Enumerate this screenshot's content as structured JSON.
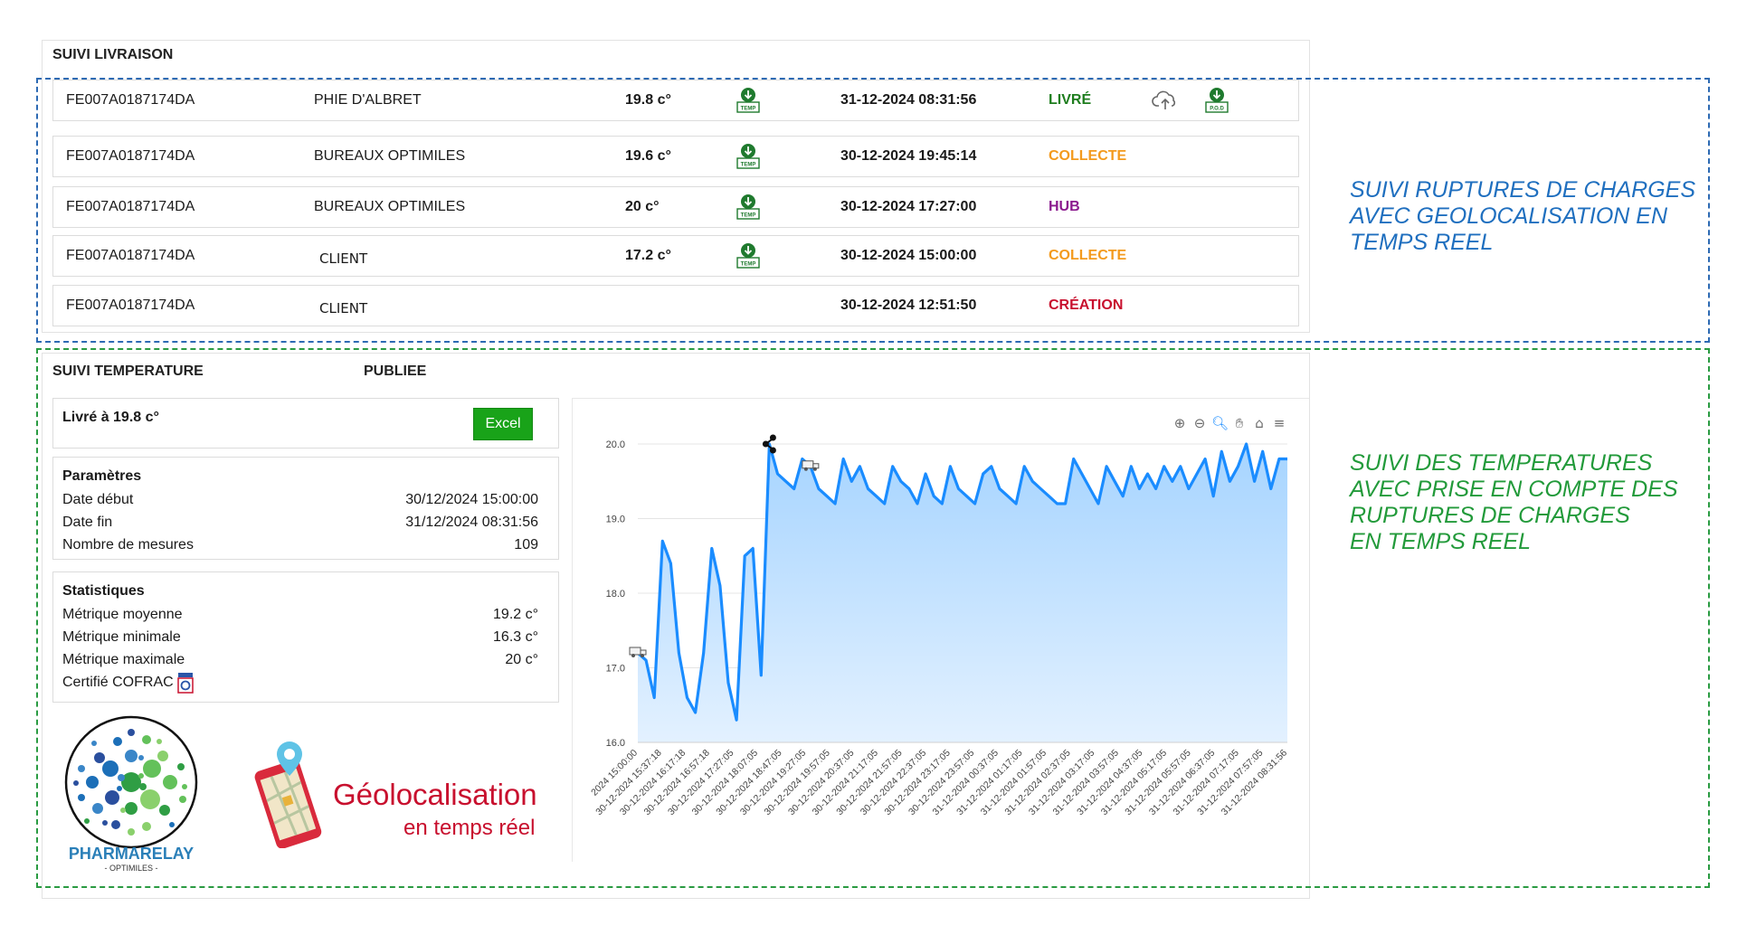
{
  "delivery": {
    "title": "SUIVI LIVRAISON",
    "rows": [
      {
        "id": "FE007A0187174DA",
        "place": "PHIE D'ALBRET",
        "temp": "19.8 c°",
        "has_temp_icon": true,
        "date": "31-12-2024 08:31:56",
        "status": "LIVRÉ",
        "status_color": "#1e7d1e",
        "has_cloud": true,
        "has_pod": true
      },
      {
        "id": "FE007A0187174DA",
        "place": "BUREAUX OPTIMILES",
        "temp": "19.6 c°",
        "has_temp_icon": true,
        "date": "30-12-2024 19:45:14",
        "status": "COLLECTE",
        "status_color": "#f39a1d",
        "has_cloud": false,
        "has_pod": false
      },
      {
        "id": "FE007A0187174DA",
        "place": "BUREAUX OPTIMILES",
        "temp": "20 c°",
        "has_temp_icon": true,
        "date": "30-12-2024 17:27:00",
        "status": "HUB",
        "status_color": "#8b1a8e",
        "has_cloud": false,
        "has_pod": false
      },
      {
        "id": "FE007A0187174DA",
        "place": "CLIENT",
        "temp": "17.2 c°",
        "has_temp_icon": true,
        "date": "30-12-2024 15:00:00",
        "status": "COLLECTE",
        "status_color": "#f39a1d",
        "has_cloud": false,
        "has_pod": false
      },
      {
        "id": "FE007A0187174DA",
        "place": "CLIENT",
        "temp": "",
        "has_temp_icon": false,
        "date": "30-12-2024 12:51:50",
        "status": "CRÉATION",
        "status_color": "#c8102e",
        "has_cloud": false,
        "has_pod": false
      }
    ],
    "temp_icon_label": "TEMP",
    "pod_icon_label": "P.O.D"
  },
  "temperature": {
    "title": "SUIVI TEMPERATURE",
    "publish_label": "PUBLIEE",
    "delivered_label": "Livré à 19.8 c°",
    "excel_button": "Excel",
    "params_title": "Paramètres",
    "params": [
      {
        "label": "Date début",
        "value": "30/12/2024 15:00:00"
      },
      {
        "label": "Date fin",
        "value": "31/12/2024 08:31:56"
      },
      {
        "label": "Nombre de mesures",
        "value": "109"
      }
    ],
    "stats_title": "Statistiques",
    "stats": [
      {
        "label": "Métrique moyenne",
        "value": "19.2 c°"
      },
      {
        "label": "Métrique minimale",
        "value": "16.3 c°"
      },
      {
        "label": "Métrique maximale",
        "value": "20 c°"
      }
    ],
    "cofrac_label": "Certifié COFRAC"
  },
  "branding": {
    "logo_name": "PHARMARELAY",
    "logo_sub": "- OPTIMILES -",
    "geo_title": "Géolocalisation",
    "geo_sub": "en temps réel",
    "geo_color": "#c8102e"
  },
  "annotations": {
    "blue_lines": [
      "SUIVI RUPTURES DE CHARGES",
      "AVEC GEOLOCALISATION EN",
      "TEMPS REEL"
    ],
    "blue_color": "#1f6fbf",
    "green_lines": [
      "SUIVI DES TEMPERATURES",
      "AVEC PRISE EN COMPTE DES",
      "RUPTURES DE CHARGES",
      "EN TEMPS REEL"
    ],
    "green_color": "#229a3a"
  },
  "chart_toolbar": [
    "zoom-in-icon",
    "zoom-out-icon",
    "selection-zoom-icon",
    "pan-icon",
    "reset-home-icon",
    "menu-icon"
  ],
  "chart_data": {
    "type": "area",
    "title": "",
    "xlabel": "",
    "ylabel": "",
    "ylim": [
      16.0,
      20.0
    ],
    "yticks": [
      "16.0",
      "17.0",
      "18.0",
      "19.0",
      "20.0"
    ],
    "grid": true,
    "color": "#1a8cff",
    "fill_color": "#a6d4ff",
    "x_tick_labels": [
      "2024 15:00:00",
      "30-12-2024 15:37:18",
      "30-12-2024 16:17:18",
      "30-12-2024 16:57:18",
      "30-12-2024 17:27:05",
      "30-12-2024 18:07:05",
      "30-12-2024 18:47:05",
      "30-12-2024 19:27:05",
      "30-12-2024 19:57:05",
      "30-12-2024 20:37:05",
      "30-12-2024 21:17:05",
      "30-12-2024 21:57:05",
      "30-12-2024 22:37:05",
      "30-12-2024 23:17:05",
      "30-12-2024 23:57:05",
      "31-12-2024 00:37:05",
      "31-12-2024 01:17:05",
      "31-12-2024 01:57:05",
      "31-12-2024 02:37:05",
      "31-12-2024 03:17:05",
      "31-12-2024 03:57:05",
      "31-12-2024 04:37:05",
      "31-12-2024 05:17:05",
      "31-12-2024 05:57:05",
      "31-12-2024 06:37:05",
      "31-12-2024 07:17:05",
      "31-12-2024 07:57:05",
      "31-12-2024 08:31:56"
    ],
    "series": [
      {
        "values": [
          17.2,
          17.1,
          16.6,
          18.7,
          18.4,
          17.2,
          16.6,
          16.4,
          17.2,
          18.6,
          18.1,
          16.8,
          16.3,
          18.5,
          18.6,
          16.9,
          20.0,
          19.6,
          19.5,
          19.4,
          19.8,
          19.7,
          19.4,
          19.3,
          19.2,
          19.8,
          19.5,
          19.7,
          19.4,
          19.3,
          19.2,
          19.7,
          19.5,
          19.4,
          19.2,
          19.6,
          19.3,
          19.2,
          19.7,
          19.4,
          19.3,
          19.2,
          19.6,
          19.7,
          19.4,
          19.3,
          19.2,
          19.7,
          19.5,
          19.4,
          19.3,
          19.2,
          19.2,
          19.8,
          19.6,
          19.4,
          19.2,
          19.7,
          19.5,
          19.3,
          19.7,
          19.4,
          19.6,
          19.4,
          19.7,
          19.5,
          19.7,
          19.4,
          19.6,
          19.8,
          19.3,
          19.9,
          19.5,
          19.7,
          20.0,
          19.5,
          19.9,
          19.4,
          19.8,
          19.8
        ]
      }
    ],
    "markers": [
      {
        "name": "truck-marker",
        "index": 0
      },
      {
        "name": "share-marker",
        "index": 16
      },
      {
        "name": "truck-marker",
        "index": 21
      }
    ]
  }
}
